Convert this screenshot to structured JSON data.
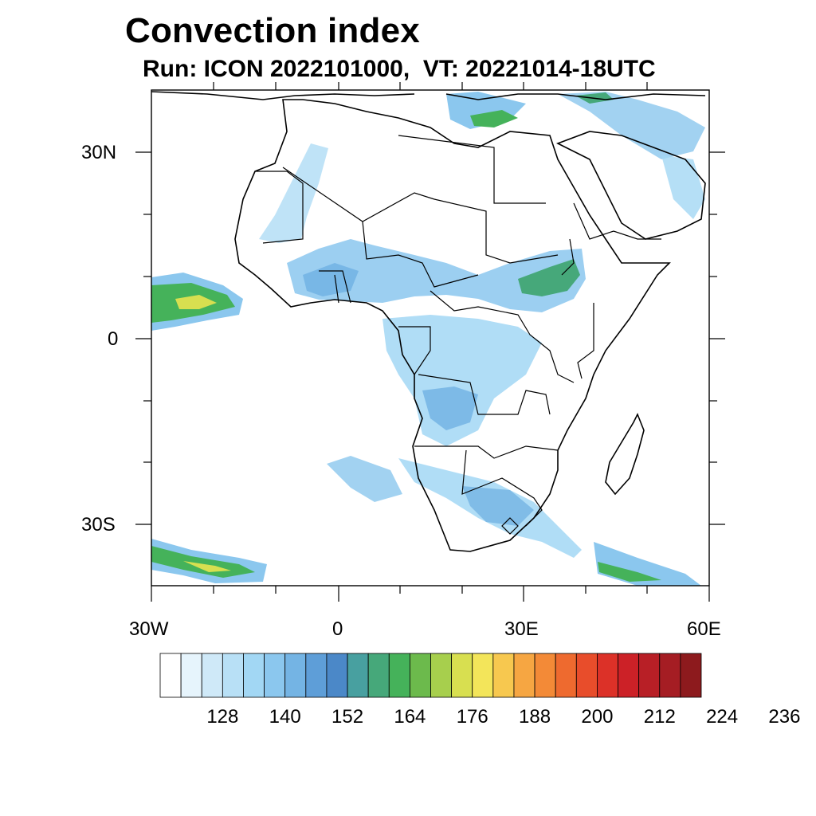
{
  "title": "Convection index",
  "subtitle": "Run: ICON 2022101000,  VT: 20221014-18UTC",
  "axes": {
    "lat_labels": [
      "30N",
      "0",
      "30S"
    ],
    "lon_labels": [
      "30W",
      "0",
      "30E",
      "60E"
    ]
  },
  "colorbar": {
    "colors": [
      "#ffffff",
      "#e6f4fc",
      "#cfe9f8",
      "#b8e0f6",
      "#a2d7f4",
      "#8bc7ee",
      "#74b4e4",
      "#5e9ed8",
      "#4b88c8",
      "#48a0a0",
      "#46a87a",
      "#45b25a",
      "#6cba4c",
      "#a7cf4d",
      "#d8df50",
      "#f3e55a",
      "#f7c84f",
      "#f6a642",
      "#f38a37",
      "#ee6a2f",
      "#e84d2b",
      "#dc3128",
      "#cc2127",
      "#b81f26",
      "#a51d23",
      "#8d1a1d"
    ],
    "labels": [
      "128",
      "140",
      "152",
      "164",
      "176",
      "188",
      "200",
      "212",
      "224",
      "236"
    ]
  },
  "map_layers": [
    "coastlines",
    "country-borders",
    "convection-index-fill"
  ]
}
